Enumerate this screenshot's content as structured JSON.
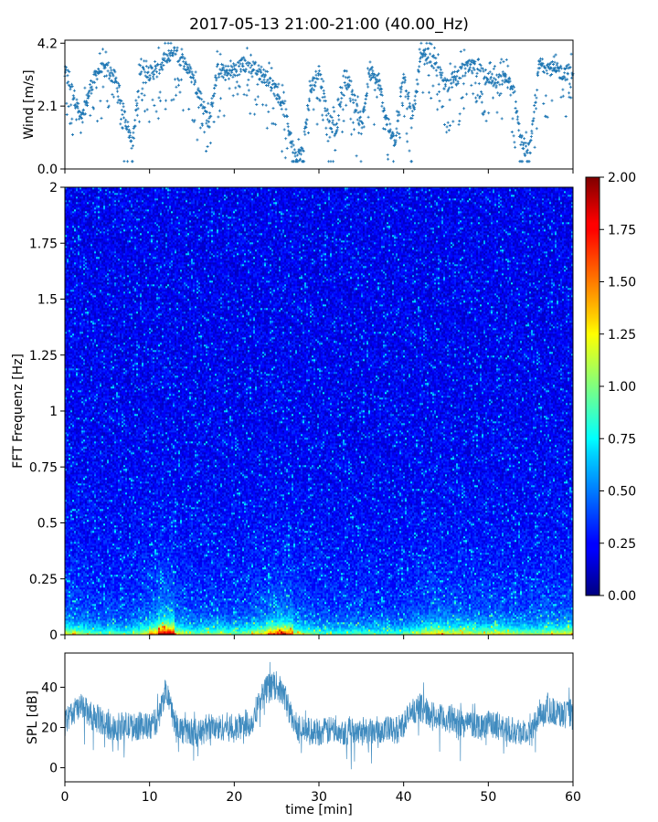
{
  "title": "2017-05-13 21:00-21:00 (40.00_Hz)",
  "chart_data": [
    {
      "id": "wind",
      "type": "scatter",
      "ylabel": "Wind [m/s]",
      "xlim": [
        0,
        60
      ],
      "ylim": [
        0.0,
        4.3
      ],
      "yticks": [
        "0.0",
        "2.1",
        "4.2"
      ],
      "ytick_values": [
        0.0,
        2.1,
        4.2
      ],
      "color": "#1f77b4",
      "marker": "plus",
      "series": [
        {
          "x": [
            0,
            1,
            2,
            3,
            4,
            5,
            6,
            7,
            8,
            9,
            10,
            11,
            12,
            13,
            14,
            15,
            16,
            17,
            18,
            19,
            20,
            21,
            22,
            23,
            24,
            25,
            26,
            27,
            28,
            29,
            30,
            31,
            32,
            33,
            34,
            35,
            36,
            37,
            38,
            39,
            40,
            41,
            42,
            43,
            44,
            45,
            46,
            47,
            48,
            49,
            50,
            51,
            52,
            53,
            54,
            55,
            56,
            57,
            58,
            59,
            60
          ],
          "y": [
            3.2,
            2.5,
            1.6,
            2.7,
            3.3,
            3.3,
            3.0,
            1.8,
            0.8,
            3.5,
            3.2,
            3.3,
            3.7,
            3.9,
            3.6,
            3.1,
            2.4,
            1.5,
            3.3,
            3.2,
            3.3,
            3.5,
            3.4,
            3.2,
            3.0,
            2.6,
            1.9,
            0.6,
            0.5,
            2.6,
            3.3,
            1.8,
            1.2,
            3.1,
            2.5,
            1.4,
            3.2,
            2.9,
            1.6,
            0.8,
            3.3,
            1.5,
            3.7,
            3.8,
            3.3,
            2.8,
            3.0,
            3.3,
            3.4,
            3.3,
            3.1,
            2.9,
            3.1,
            2.6,
            0.6,
            0.7,
            3.5,
            3.4,
            3.3,
            3.2,
            3.3
          ]
        }
      ]
    },
    {
      "id": "spectrogram",
      "type": "heatmap",
      "ylabel": "FFT Frequenz [Hz]",
      "xlim": [
        0,
        60
      ],
      "ylim": [
        0,
        2
      ],
      "yticks": [
        "0",
        "0.25",
        "0.5",
        "0.75",
        "1",
        "1.25",
        "1.5",
        "1.75",
        "2"
      ],
      "ytick_values": [
        0,
        0.25,
        0.5,
        0.75,
        1,
        1.25,
        1.5,
        1.75,
        2
      ],
      "colormap": "jet",
      "colorbar": {
        "range": [
          0.0,
          2.0
        ],
        "ticks": [
          "0.00",
          "0.25",
          "0.50",
          "0.75",
          "1.00",
          "1.25",
          "1.50",
          "1.75",
          "2.00"
        ],
        "tick_values": [
          0.0,
          0.25,
          0.5,
          0.75,
          1.0,
          1.25,
          1.5,
          1.75,
          2.0
        ]
      },
      "column_activity": [
        0.55,
        0.5,
        0.45,
        0.4,
        0.35,
        0.4,
        0.35,
        0.35,
        0.45,
        0.55,
        0.7,
        1.0,
        1.0,
        0.55,
        0.45,
        0.4,
        0.45,
        0.45,
        0.45,
        0.4,
        0.4,
        0.45,
        0.55,
        0.6,
        0.75,
        0.85,
        0.8,
        0.5,
        0.45,
        0.4,
        0.35,
        0.35,
        0.35,
        0.35,
        0.4,
        0.35,
        0.35,
        0.35,
        0.35,
        0.35,
        0.4,
        0.45,
        0.55,
        0.6,
        0.6,
        0.55,
        0.55,
        0.55,
        0.5,
        0.5,
        0.55,
        0.55,
        0.5,
        0.45,
        0.45,
        0.45,
        0.5,
        0.5,
        0.5,
        0.55
      ]
    },
    {
      "id": "spl",
      "type": "line",
      "ylabel": "SPL [dB]",
      "xlabel": "time [min]",
      "xlim": [
        0,
        60
      ],
      "ylim": [
        -7,
        57
      ],
      "yticks": [
        "0",
        "20",
        "40"
      ],
      "ytick_values": [
        0,
        20,
        40
      ],
      "xticks": [
        "0",
        "10",
        "20",
        "30",
        "40",
        "50",
        "60"
      ],
      "xtick_values": [
        0,
        10,
        20,
        30,
        40,
        50,
        60
      ],
      "color": "#1f77b4",
      "series": [
        {
          "x": [
            0,
            1,
            2,
            3,
            4,
            5,
            6,
            7,
            8,
            9,
            10,
            11,
            12,
            13,
            14,
            15,
            16,
            17,
            18,
            19,
            20,
            21,
            22,
            23,
            24,
            25,
            26,
            27,
            28,
            29,
            30,
            31,
            32,
            33,
            34,
            35,
            36,
            37,
            38,
            39,
            40,
            41,
            42,
            43,
            44,
            45,
            46,
            47,
            48,
            49,
            50,
            51,
            52,
            53,
            54,
            55,
            56,
            57,
            58,
            59,
            60
          ],
          "y": [
            22,
            28,
            30,
            26,
            24,
            21,
            20,
            21,
            20,
            21,
            20,
            24,
            40,
            22,
            18,
            18,
            17,
            21,
            19,
            21,
            18,
            22,
            22,
            34,
            40,
            41,
            35,
            22,
            19,
            18,
            18,
            18,
            20,
            18,
            19,
            19,
            18,
            19,
            19,
            18,
            22,
            28,
            30,
            27,
            25,
            24,
            24,
            22,
            22,
            21,
            22,
            21,
            20,
            19,
            18,
            16,
            27,
            30,
            27,
            26,
            28
          ]
        }
      ]
    }
  ]
}
